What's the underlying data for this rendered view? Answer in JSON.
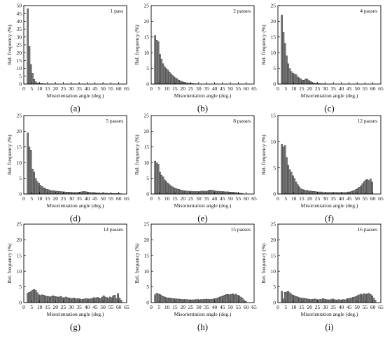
{
  "figure": {
    "captions": [
      "(a)",
      "(b)",
      "(c)",
      "(d)",
      "(e)",
      "(f)",
      "(g)",
      "(h)",
      "(i)"
    ]
  },
  "chart_data": [
    {
      "type": "bar",
      "panel": "(a)",
      "label": "1 pass",
      "xlabel": "Misorientation angle (deg.)",
      "ylabel": "Rel. frequency (%)",
      "xlim": [
        0,
        65
      ],
      "ylim": [
        0,
        50
      ],
      "xticks": [
        0,
        5,
        10,
        15,
        20,
        25,
        30,
        35,
        40,
        45,
        50,
        55,
        60,
        65
      ],
      "yticks": [
        0,
        5,
        10,
        15,
        20,
        25,
        30,
        35,
        40,
        45,
        50
      ],
      "bin_start": 2,
      "bin_width": 1,
      "values": [
        48,
        24,
        12.5,
        7,
        3,
        1.5,
        0.8,
        0.5,
        0.4,
        0.3,
        0.2,
        0.2,
        0.15,
        0.1,
        0.1
      ]
    },
    {
      "type": "bar",
      "panel": "(b)",
      "label": "2 passes",
      "xlabel": "Misorientation angle (deg.)",
      "ylabel": "Rel. frequency (%)",
      "xlim": [
        0,
        65
      ],
      "ylim": [
        0,
        25
      ],
      "xticks": [
        0,
        5,
        10,
        15,
        20,
        25,
        30,
        35,
        40,
        45,
        50,
        55,
        60,
        65
      ],
      "yticks": [
        0,
        5,
        10,
        15,
        20,
        25
      ],
      "bin_start": 2,
      "bin_width": 1,
      "values": [
        15.5,
        14,
        13.5,
        9.5,
        8,
        6.5,
        5.5,
        5,
        4.5,
        3.8,
        3.3,
        2.8,
        2.3,
        2,
        1.6,
        1.3,
        1,
        0.8,
        0.6,
        0.5,
        0.4,
        0.3,
        0.25,
        0.2,
        0.15,
        0.1,
        0.1
      ]
    },
    {
      "type": "bar",
      "panel": "(c)",
      "label": "4 passes",
      "xlabel": "Misorientation angle (deg.)",
      "ylabel": "Rel. frequency (%)",
      "xlim": [
        0,
        65
      ],
      "ylim": [
        0,
        25
      ],
      "xticks": [
        0,
        5,
        10,
        15,
        20,
        25,
        30,
        35,
        40,
        45,
        50,
        55,
        60,
        65
      ],
      "yticks": [
        0,
        5,
        10,
        15,
        20,
        25
      ],
      "bin_start": 2,
      "bin_width": 1,
      "values": [
        22,
        16.5,
        13,
        9,
        6.5,
        5,
        4,
        3.5,
        3.2,
        3,
        2.3,
        2,
        1.6,
        1.3,
        1.3,
        1.6,
        1.6,
        1.2,
        0.9,
        0.6,
        0.4,
        0.3,
        0.2,
        0.2,
        0.15,
        0.1,
        0.1,
        0.1
      ]
    },
    {
      "type": "bar",
      "panel": "(d)",
      "label": "5 passes",
      "xlabel": "Misorientation angle (deg.)",
      "ylabel": "Rel. frequency (%)",
      "xlim": [
        0,
        65
      ],
      "ylim": [
        0,
        25
      ],
      "xticks": [
        0,
        5,
        10,
        15,
        20,
        25,
        30,
        35,
        40,
        45,
        50,
        55,
        60,
        65
      ],
      "yticks": [
        0,
        5,
        10,
        15,
        20,
        25
      ],
      "bin_start": 2,
      "bin_width": 1,
      "values": [
        19.5,
        15,
        14,
        8,
        7,
        5,
        4,
        3.5,
        2.8,
        2.4,
        2,
        1.8,
        1.5,
        1.4,
        1.2,
        1.1,
        1.1,
        1,
        0.9,
        0.9,
        0.8,
        0.8,
        0.7,
        0.7,
        0.6,
        0.6,
        0.6,
        0.5,
        0.5,
        0.5,
        0.5,
        0.5,
        0.5,
        0.6,
        0.7,
        0.8,
        0.8,
        0.7,
        0.6,
        0.5,
        0.5,
        0.5,
        0.4,
        0.4,
        0.4,
        0.4,
        0.3,
        0.3,
        0.3,
        0.3,
        0.3,
        0.2,
        0.2,
        0.2,
        0.2,
        0.2,
        0.2,
        0.2,
        0.2,
        0.1
      ]
    },
    {
      "type": "bar",
      "panel": "(e)",
      "label": "8 passes",
      "xlabel": "Misorientation angle (deg.)",
      "ylabel": "Rel. frequency (%)",
      "xlim": [
        0,
        65
      ],
      "ylim": [
        0,
        25
      ],
      "xticks": [
        0,
        5,
        10,
        15,
        20,
        25,
        30,
        35,
        40,
        45,
        50,
        55,
        60,
        65
      ],
      "yticks": [
        0,
        5,
        10,
        15,
        20,
        25
      ],
      "bin_start": 2,
      "bin_width": 1,
      "values": [
        10.5,
        10,
        9.5,
        7,
        6,
        5.5,
        4.5,
        4,
        3.5,
        3,
        2.6,
        2.3,
        2,
        1.8,
        1.6,
        1.5,
        1.3,
        1.2,
        1.1,
        1,
        1,
        0.9,
        0.9,
        0.9,
        0.8,
        0.8,
        0.8,
        0.8,
        0.8,
        0.9,
        1,
        0.9,
        0.9,
        1,
        1.2,
        1.3,
        1.2,
        1.1,
        1,
        0.9,
        0.9,
        0.8,
        0.8,
        0.8,
        0.7,
        0.7,
        0.7,
        0.6,
        0.6,
        0.6,
        0.5,
        0.5,
        0.4,
        0.3,
        0.3,
        0.2
      ]
    },
    {
      "type": "bar",
      "panel": "(f)",
      "label": "12 passes",
      "xlabel": "Misorientation angle (deg.)",
      "ylabel": "Rel. frequency (%)",
      "xlim": [
        0,
        65
      ],
      "ylim": [
        0,
        15
      ],
      "xticks": [
        0,
        5,
        10,
        15,
        20,
        25,
        30,
        35,
        40,
        45,
        50,
        55,
        60,
        65
      ],
      "yticks": [
        0,
        5,
        10,
        15
      ],
      "bin_start": 2,
      "bin_width": 1,
      "values": [
        9.5,
        9,
        9.3,
        7,
        5.5,
        4.7,
        4.2,
        3.5,
        3,
        2.3,
        1.8,
        1.4,
        1,
        0.9,
        0.8,
        0.7,
        0.7,
        0.6,
        0.6,
        0.5,
        0.5,
        0.5,
        0.4,
        0.4,
        0.4,
        0.4,
        0.3,
        0.3,
        0.3,
        0.3,
        0.3,
        0.3,
        0.3,
        0.3,
        0.3,
        0.3,
        0.3,
        0.3,
        0.3,
        0.3,
        0.3,
        0.3,
        0.4,
        0.4,
        0.5,
        0.6,
        0.7,
        0.9,
        1.1,
        1.3,
        1.6,
        2,
        2.4,
        2.7,
        2.8,
        2.6,
        2.9,
        2.3
      ]
    },
    {
      "type": "bar",
      "panel": "(g)",
      "label": "14 passes",
      "xlabel": "Misorientation angle (deg.)",
      "ylabel": "Rel. frequency (%)",
      "xlim": [
        0,
        65
      ],
      "ylim": [
        0,
        25
      ],
      "xticks": [
        0,
        5,
        10,
        15,
        20,
        25,
        30,
        35,
        40,
        45,
        50,
        55,
        60,
        65
      ],
      "yticks": [
        0,
        5,
        10,
        15,
        20,
        25
      ],
      "bin_start": 2,
      "bin_width": 1,
      "values": [
        3,
        3.3,
        3.5,
        4,
        4.2,
        4,
        3.2,
        2.5,
        2.3,
        2.5,
        2.4,
        2.2,
        2,
        2,
        1.8,
        2,
        2.2,
        2,
        1.9,
        1.8,
        1.8,
        2,
        1.6,
        1.5,
        1.8,
        1.6,
        1.5,
        1.4,
        1.3,
        1.5,
        1.3,
        1.2,
        1.3,
        1.2,
        1,
        1.1,
        1.2,
        1.3,
        1.2,
        1.1,
        1.3,
        1.4,
        1.6,
        1.5,
        1.7,
        1.5,
        1.3,
        1.8,
        2.2,
        1.8,
        1.6,
        1.4,
        1.8,
        1.6,
        2.2,
        2.4,
        1.3,
        2.9,
        1.5,
        0.8
      ]
    },
    {
      "type": "bar",
      "panel": "(h)",
      "label": "15 passes",
      "xlabel": "Misorientation angle (deg.)",
      "ylabel": "Rel. frequency (%)",
      "xlim": [
        0,
        65
      ],
      "ylim": [
        0,
        25
      ],
      "xticks": [
        0,
        5,
        10,
        15,
        20,
        25,
        30,
        35,
        40,
        45,
        50,
        55,
        60,
        65
      ],
      "yticks": [
        0,
        5,
        10,
        15,
        20,
        25
      ],
      "bin_start": 2,
      "bin_width": 1,
      "values": [
        2.5,
        3,
        2.8,
        2.6,
        2.3,
        2,
        1.8,
        1.6,
        1.5,
        1.5,
        1.4,
        1.3,
        1.3,
        1.2,
        1.2,
        1.1,
        1.1,
        1,
        1,
        1,
        1,
        0.9,
        0.9,
        0.9,
        0.9,
        0.9,
        1,
        1,
        0.9,
        1,
        1,
        1,
        1.1,
        1.1,
        1,
        1,
        1.1,
        1.2,
        1.3,
        1.4,
        1.6,
        1.8,
        2,
        2.2,
        2.4,
        2.6,
        2.6,
        2.5,
        2.6,
        2.8,
        2.5,
        2.7,
        2.4,
        2.2,
        1.8,
        1.5,
        0.9,
        0.4
      ]
    },
    {
      "type": "bar",
      "panel": "(i)",
      "label": "16 passes",
      "xlabel": "Misorientation angle (deg.)",
      "ylabel": "Rel. frequency (%)",
      "xlim": [
        0,
        65
      ],
      "ylim": [
        0,
        25
      ],
      "xticks": [
        0,
        5,
        10,
        15,
        20,
        25,
        30,
        35,
        40,
        45,
        50,
        55,
        60,
        65
      ],
      "yticks": [
        0,
        5,
        10,
        15,
        20,
        25
      ],
      "bin_start": 2,
      "bin_width": 1,
      "values": [
        3.6,
        1.2,
        3.3,
        3.4,
        3.6,
        3.2,
        2.7,
        2.4,
        2.2,
        2,
        1.8,
        1.6,
        1.5,
        1.4,
        1.4,
        1.3,
        1.2,
        1.1,
        1,
        1,
        1.1,
        1.2,
        1,
        0.9,
        1,
        1,
        1.3,
        1.1,
        1,
        0.9,
        0.9,
        1,
        1.2,
        1,
        0.9,
        0.8,
        1,
        0.8,
        0.9,
        1,
        0.9,
        1.2,
        1.3,
        1.4,
        1.5,
        1.7,
        1.8,
        2,
        2.3,
        2.5,
        2.7,
        2.5,
        2.9,
        2.6,
        2.8,
        3,
        2.6,
        2.2,
        1.5,
        0.8
      ]
    }
  ]
}
